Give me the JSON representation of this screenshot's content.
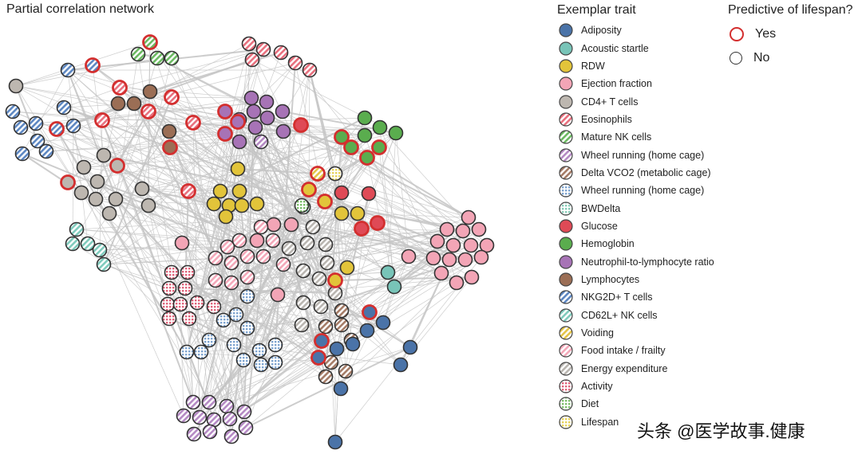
{
  "title": "Partial correlation network",
  "legend": {
    "title": "Exemplar trait",
    "items": [
      {
        "label": "Adiposity",
        "color": "#4a73a8",
        "pattern": "solid"
      },
      {
        "label": "Acoustic startle",
        "color": "#78c4b8",
        "pattern": "solid"
      },
      {
        "label": "RDW",
        "color": "#e2c43a",
        "pattern": "solid"
      },
      {
        "label": "Ejection fraction",
        "color": "#f3a5b6",
        "pattern": "solid"
      },
      {
        "label": "CD4+ T cells",
        "color": "#bdb7b0",
        "pattern": "solid"
      },
      {
        "label": "Eosinophils",
        "color": "#e8707e",
        "pattern": "stripe"
      },
      {
        "label": "Mature NK cells",
        "color": "#6cba62",
        "pattern": "stripe"
      },
      {
        "label": "Wheel running (home cage)",
        "color": "#b58ac4",
        "pattern": "stripe"
      },
      {
        "label": "Delta VCO2 (metabolic cage)",
        "color": "#a57c67",
        "pattern": "stripe"
      },
      {
        "label": "Wheel running (home cage)",
        "color": "#7ea4cf",
        "pattern": "dots"
      },
      {
        "label": "BWDelta",
        "color": "#86cbb7",
        "pattern": "dots"
      },
      {
        "label": "Glucose",
        "color": "#df4a56",
        "pattern": "solid"
      },
      {
        "label": "Hemoglobin",
        "color": "#5aad4e",
        "pattern": "solid"
      },
      {
        "label": "Neutrophil-to-lymphocyte ratio",
        "color": "#a773b6",
        "pattern": "solid"
      },
      {
        "label": "Lymphocytes",
        "color": "#9b6e55",
        "pattern": "solid"
      },
      {
        "label": "NKG2D+ T cells",
        "color": "#5d87c2",
        "pattern": "stripe"
      },
      {
        "label": "CD62L+ NK cells",
        "color": "#7fcbbd",
        "pattern": "stripe"
      },
      {
        "label": "Voiding",
        "color": "#e5c548",
        "pattern": "stripe"
      },
      {
        "label": "Food intake / frailty",
        "color": "#f4a8b9",
        "pattern": "stripe"
      },
      {
        "label": "Energy expenditure",
        "color": "#b9b5b0",
        "pattern": "stripe"
      },
      {
        "label": "Activity",
        "color": "#e0637a",
        "pattern": "dots"
      },
      {
        "label": "Diet",
        "color": "#7dbf6a",
        "pattern": "dots"
      },
      {
        "label": "Lifespan",
        "color": "#e7d35a",
        "pattern": "dots"
      }
    ]
  },
  "predictive": {
    "title": "Predictive of lifespan?",
    "yes_label": "Yes",
    "no_label": "No",
    "yes_color": "#d32f2f",
    "no_color": "#333333"
  },
  "edge_color": "#c4c4c4",
  "watermark": "头条 @医学故事.健康"
}
